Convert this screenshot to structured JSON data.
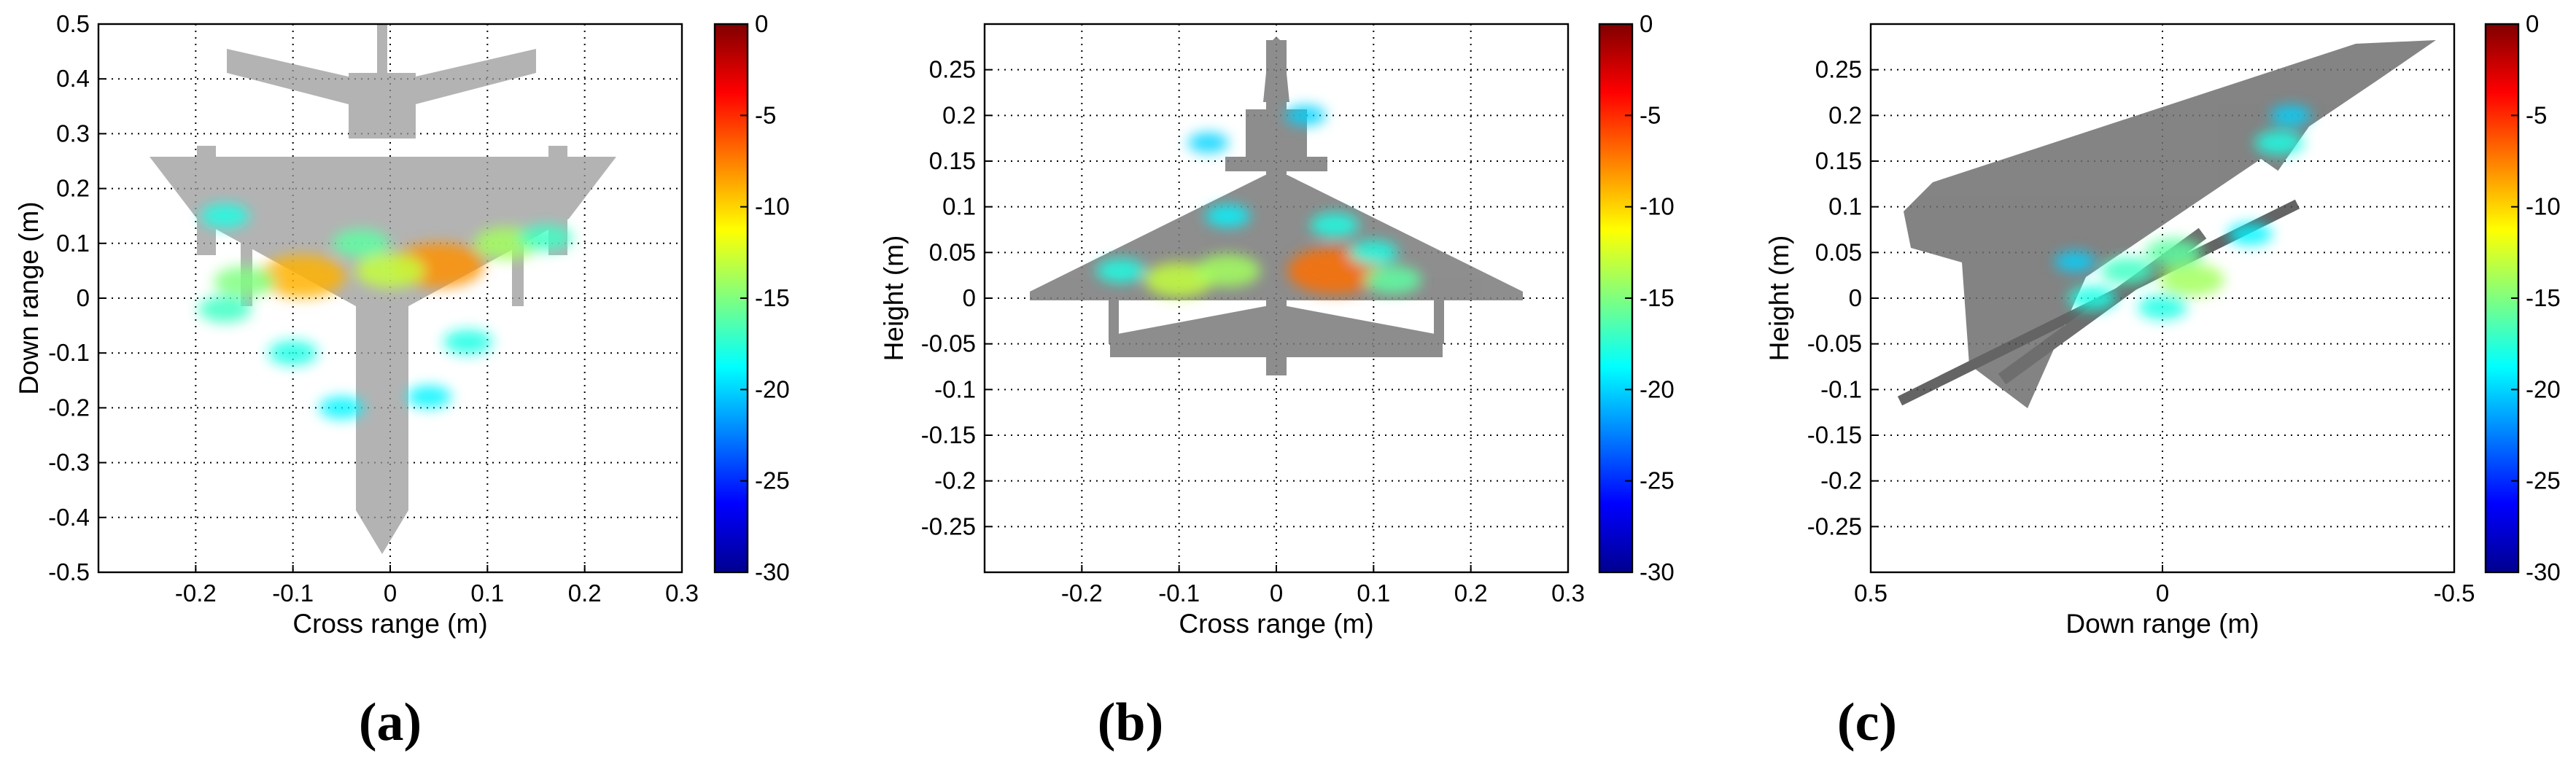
{
  "chart_data": [
    {
      "type": "heatmap",
      "panel_label": "(a)",
      "xlabel": "Cross range (m)",
      "ylabel": "Down range (m)",
      "xlim": [
        -0.3,
        0.3
      ],
      "ylim": [
        -0.5,
        0.5
      ],
      "xticks": [
        -0.2,
        -0.1,
        0,
        0.1,
        0.2,
        0.3
      ],
      "xtick_labels": [
        "-0.2",
        "-0.1",
        "0",
        "0.1",
        "0.2",
        "0.3"
      ],
      "yticks": [
        -0.5,
        -0.4,
        -0.3,
        -0.2,
        -0.1,
        0,
        0.1,
        0.2,
        0.3,
        0.4,
        0.5
      ],
      "ytick_labels": [
        "-0.5",
        "-0.4",
        "-0.3",
        "-0.2",
        "-0.1",
        "0",
        "0.1",
        "0.2",
        "0.3",
        "0.4",
        "0.5"
      ],
      "grid": true,
      "view": "top",
      "colorbar": {
        "ticks": [
          0,
          -5,
          -10,
          -15,
          -20,
          -25,
          -30
        ],
        "tick_labels": [
          "0",
          "-5",
          "-10",
          "-15",
          "-20",
          "-25",
          "-30"
        ],
        "range": [
          -30,
          0
        ],
        "colormap": "jet"
      },
      "hotspots": [
        {
          "x": -0.09,
          "y": 0.04,
          "value": -9
        },
        {
          "x": 0.05,
          "y": 0.06,
          "value": -8
        },
        {
          "x": -0.15,
          "y": 0.03,
          "value": -15
        },
        {
          "x": 0.12,
          "y": 0.1,
          "value": -14
        },
        {
          "x": -0.03,
          "y": 0.1,
          "value": -16
        },
        {
          "x": 0.0,
          "y": 0.05,
          "value": -13
        },
        {
          "x": -0.1,
          "y": -0.1,
          "value": -18
        },
        {
          "x": 0.08,
          "y": -0.08,
          "value": -18
        },
        {
          "x": -0.05,
          "y": -0.2,
          "value": -19
        },
        {
          "x": 0.04,
          "y": -0.18,
          "value": -19
        },
        {
          "x": -0.17,
          "y": 0.15,
          "value": -18
        },
        {
          "x": 0.16,
          "y": 0.11,
          "value": -17
        },
        {
          "x": -0.17,
          "y": -0.02,
          "value": -17
        }
      ]
    },
    {
      "type": "heatmap",
      "panel_label": "(b)",
      "xlabel": "Cross range (m)",
      "ylabel": "Height (m)",
      "xlim": [
        -0.3,
        0.3
      ],
      "ylim": [
        -0.3,
        0.3
      ],
      "xticks": [
        -0.2,
        -0.1,
        0,
        0.1,
        0.2,
        0.3
      ],
      "xtick_labels": [
        "-0.2",
        "-0.1",
        "0",
        "0.1",
        "0.2",
        "0.3"
      ],
      "yticks": [
        -0.25,
        -0.2,
        -0.15,
        -0.1,
        -0.05,
        0,
        0.05,
        0.1,
        0.15,
        0.2,
        0.25
      ],
      "ytick_labels": [
        "-0.25",
        "-0.2",
        "-0.15",
        "-0.1",
        "-0.05",
        "0",
        "0.05",
        "0.1",
        "0.15",
        "0.2",
        "0.25"
      ],
      "grid": true,
      "view": "front",
      "colorbar": {
        "ticks": [
          0,
          -5,
          -10,
          -15,
          -20,
          -25,
          -30
        ],
        "tick_labels": [
          "0",
          "-5",
          "-10",
          "-15",
          "-20",
          "-25",
          "-30"
        ],
        "range": [
          -30,
          0
        ],
        "colormap": "jet"
      },
      "hotspots": [
        {
          "x": 0.06,
          "y": 0.03,
          "value": -7
        },
        {
          "x": -0.1,
          "y": 0.02,
          "value": -13
        },
        {
          "x": -0.05,
          "y": 0.03,
          "value": -14
        },
        {
          "x": 0.12,
          "y": 0.02,
          "value": -16
        },
        {
          "x": -0.16,
          "y": 0.03,
          "value": -18
        },
        {
          "x": -0.05,
          "y": 0.09,
          "value": -19
        },
        {
          "x": 0.06,
          "y": 0.08,
          "value": -18
        },
        {
          "x": -0.07,
          "y": 0.17,
          "value": -20
        },
        {
          "x": 0.03,
          "y": 0.2,
          "value": -20
        },
        {
          "x": 0.1,
          "y": 0.05,
          "value": -18
        }
      ]
    },
    {
      "type": "heatmap",
      "panel_label": "(c)",
      "xlabel": "Down range (m)",
      "ylabel": "Height (m)",
      "xlim": [
        0.5,
        -0.5
      ],
      "ylim": [
        -0.3,
        0.3
      ],
      "xticks": [
        0.5,
        0,
        -0.5
      ],
      "xtick_labels": [
        "0.5",
        "0",
        "-0.5"
      ],
      "yticks": [
        -0.25,
        -0.2,
        -0.15,
        -0.1,
        -0.05,
        0,
        0.05,
        0.1,
        0.15,
        0.2,
        0.25
      ],
      "ytick_labels": [
        "-0.25",
        "-0.2",
        "-0.15",
        "-0.1",
        "-0.05",
        "0",
        "0.05",
        "0.1",
        "0.15",
        "0.2",
        "0.25"
      ],
      "grid": true,
      "view": "side",
      "colorbar": {
        "ticks": [
          0,
          -5,
          -10,
          -15,
          -20,
          -25,
          -30
        ],
        "tick_labels": [
          "0",
          "-5",
          "-10",
          "-15",
          "-20",
          "-25",
          "-30"
        ],
        "range": [
          -30,
          0
        ],
        "colormap": "jet"
      },
      "hotspots": [
        {
          "x": 0.06,
          "y": 0.03,
          "value": -17
        },
        {
          "x": -0.02,
          "y": 0.05,
          "value": -16
        },
        {
          "x": -0.05,
          "y": 0.02,
          "value": -14
        },
        {
          "x": 0.12,
          "y": 0.0,
          "value": -18
        },
        {
          "x": 0.0,
          "y": -0.01,
          "value": -18
        },
        {
          "x": -0.15,
          "y": 0.07,
          "value": -19
        },
        {
          "x": -0.2,
          "y": 0.17,
          "value": -18
        },
        {
          "x": -0.22,
          "y": 0.2,
          "value": -20
        },
        {
          "x": 0.15,
          "y": 0.04,
          "value": -20
        }
      ]
    }
  ]
}
